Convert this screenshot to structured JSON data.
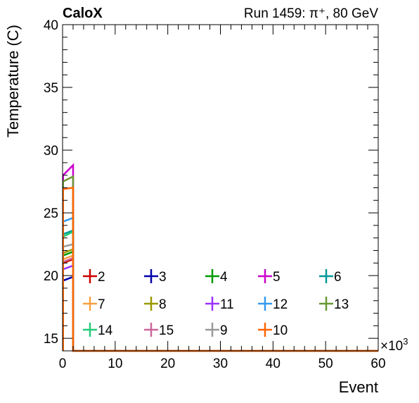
{
  "header": {
    "left": "CaloX",
    "right": "Run 1459: π⁺, 80 GeV"
  },
  "chart_data": {
    "type": "line",
    "xlabel": "Event",
    "ylabel": "Temperature (C)",
    "x_multiplier_label": "×10",
    "x_multiplier_exp": "3",
    "xlim": [
      0,
      60
    ],
    "ylim": [
      14,
      40
    ],
    "x_ticks": [
      "0",
      "10",
      "20",
      "30",
      "40",
      "50",
      "60"
    ],
    "y_ticks": [
      "15",
      "20",
      "25",
      "30",
      "35",
      "40"
    ],
    "legend_placement": "bottom",
    "series": [
      {
        "name": "2",
        "color": "#cc0000",
        "values": [
          21.0,
          21.3
        ]
      },
      {
        "name": "3",
        "color": "#0000aa",
        "values": [
          19.6,
          19.9
        ]
      },
      {
        "name": "4",
        "color": "#009900",
        "values": [
          21.6,
          21.9
        ]
      },
      {
        "name": "5",
        "color": "#cc00cc",
        "values": [
          28.0,
          28.8
        ]
      },
      {
        "name": "6",
        "color": "#009999",
        "values": [
          23.3,
          23.6
        ]
      },
      {
        "name": "7",
        "color": "#f9a040",
        "values": [
          21.3,
          21.6
        ]
      },
      {
        "name": "8",
        "color": "#999900",
        "values": [
          21.8,
          22.1
        ]
      },
      {
        "name": "11",
        "color": "#9933ff",
        "values": [
          20.5,
          20.8
        ]
      },
      {
        "name": "12",
        "color": "#3399ee",
        "values": [
          24.3,
          24.6
        ]
      },
      {
        "name": "13",
        "color": "#669933",
        "values": [
          27.5,
          27.9
        ]
      },
      {
        "name": "14",
        "color": "#22cc77",
        "values": [
          23.1,
          23.5
        ]
      },
      {
        "name": "15",
        "color": "#cc6699",
        "values": [
          21.1,
          21.4
        ]
      },
      {
        "name": "9",
        "color": "#999999",
        "values": [
          22.3,
          22.5
        ]
      },
      {
        "name": "10",
        "color": "#ff6600",
        "values": [
          26.9,
          27.0
        ]
      }
    ],
    "x": [
      0.1,
      2.0
    ]
  }
}
